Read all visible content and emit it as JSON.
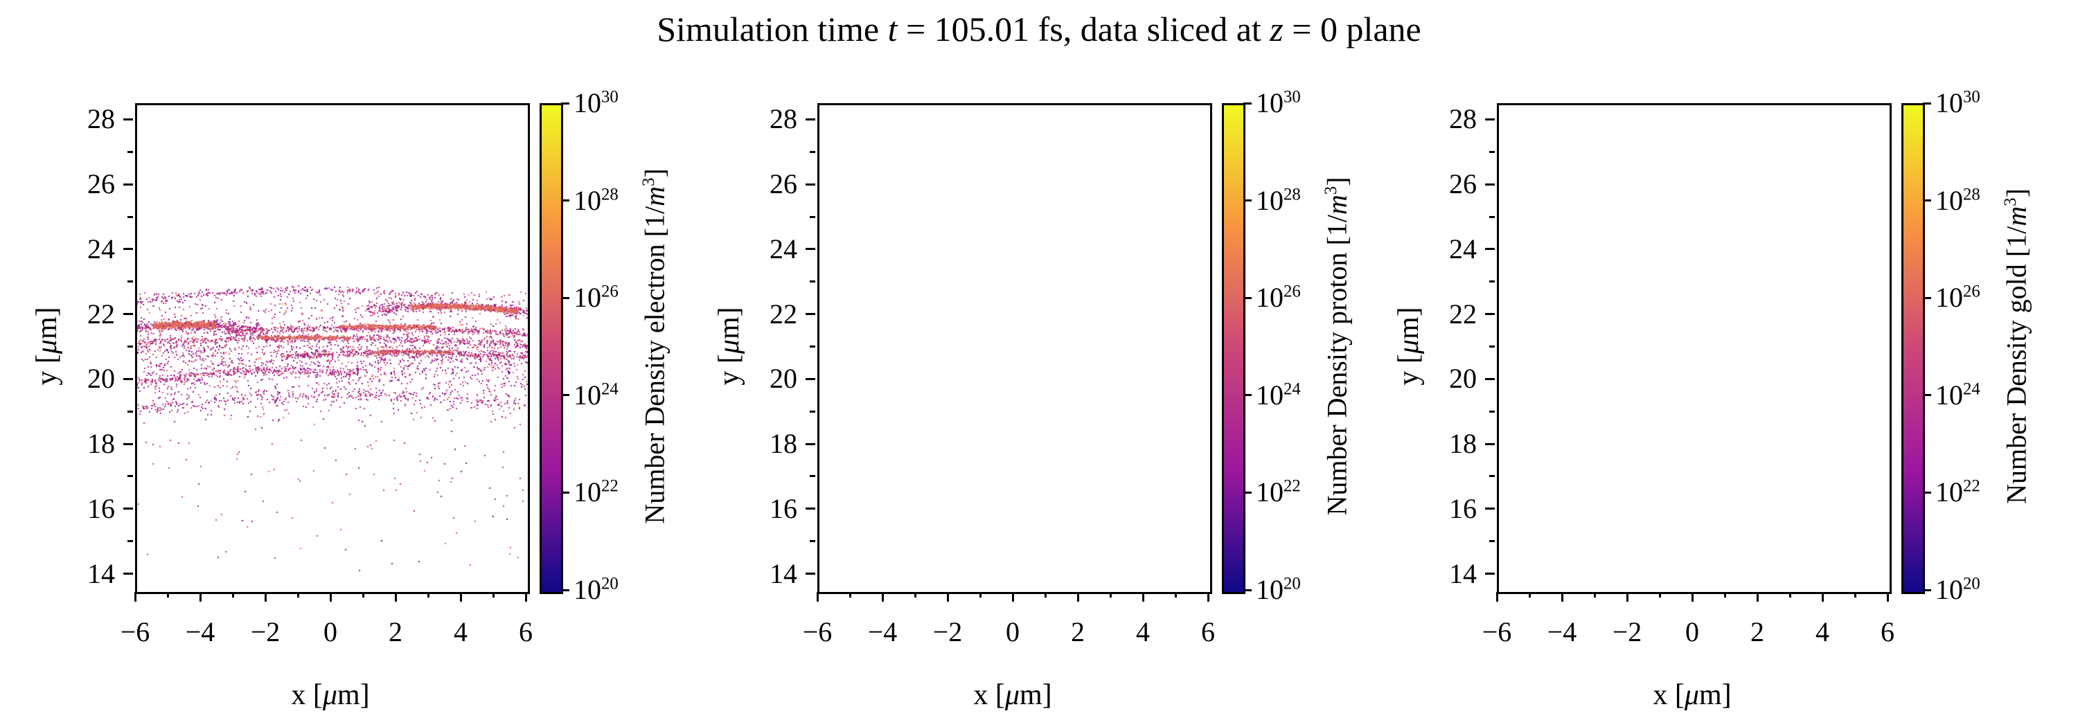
{
  "background": "#ffffff",
  "text_color": "#000000",
  "title": {
    "part1": "Simulation time ",
    "t_var": "t",
    "part2": " = 105.01 fs, data sliced at ",
    "z_var": "z",
    "part3": " = 0 plane"
  },
  "axis_labels": {
    "x_prefix": "x [",
    "mu": "μ",
    "x_suffix": "m]",
    "y_prefix": "y [",
    "y_suffix": "m]"
  },
  "ticks": {
    "x_labels": [
      "−6",
      "−4",
      "−2",
      "0",
      "2",
      "4",
      "6"
    ],
    "y_labels": [
      "28",
      "26",
      "24",
      "22",
      "20",
      "18",
      "16",
      "14"
    ],
    "cbar_base": "10",
    "cbar_exponents": [
      "30",
      "28",
      "26",
      "24",
      "22",
      "20"
    ]
  },
  "panels": [
    {
      "species": "electron",
      "cbar_prefix": "Number Density electron [1/",
      "cbar_m": "m",
      "cbar_exp": "3",
      "cbar_suffix": "]"
    },
    {
      "species": "proton",
      "cbar_prefix": "Number Density proton [1/",
      "cbar_m": "m",
      "cbar_exp": "3",
      "cbar_suffix": "]"
    },
    {
      "species": "gold",
      "cbar_prefix": "Number Density gold [1/",
      "cbar_m": "m",
      "cbar_exp": "3",
      "cbar_suffix": "]"
    }
  ],
  "chart_data": {
    "type": "scatter",
    "title": "Simulation time t = 105.01 fs, data sliced at z = 0 plane",
    "xlabel": "x [μm]",
    "ylabel": "y [μm]",
    "xlim": [
      -6,
      6
    ],
    "ylim": [
      13.5,
      28.5
    ],
    "x_major_ticks": [
      -6,
      -4,
      -2,
      0,
      2,
      4,
      6
    ],
    "x_minor_ticks": [
      -5,
      -3,
      -1,
      1,
      3,
      5
    ],
    "y_major_ticks": [
      28,
      26,
      24,
      22,
      20,
      18,
      16,
      14
    ],
    "y_minor_ticks": [
      15,
      17,
      19,
      21,
      23,
      25,
      27
    ],
    "grid": false,
    "legend": false,
    "color_scale": {
      "type": "log",
      "min": 1e+20,
      "max": 1e+30,
      "unit": "1/m^3",
      "tick_exponents": [
        30,
        28,
        26,
        24,
        22,
        20
      ]
    },
    "colormap": {
      "name": "plasma",
      "stops": [
        [
          0,
          "#0d0887"
        ],
        [
          0.25,
          "#9c179e"
        ],
        [
          0.5,
          "#cc4778"
        ],
        [
          0.75,
          "#f89441"
        ],
        [
          1,
          "#f0f921"
        ]
      ]
    },
    "panels": [
      {
        "species": "electron",
        "empty": false,
        "seed": 11,
        "marker_px": 2,
        "bands": [
          {
            "x0": -6,
            "x1": 3.2,
            "y_peak": 22.82,
            "x_peak": -0.8,
            "curvature": 0.015,
            "spread": 0.06,
            "count": 260,
            "c0": 0.18,
            "c1": 0.52
          },
          {
            "x0": 1.0,
            "x1": 6,
            "y_peak": 22.32,
            "x_peak": 3.3,
            "curvature": 0.03,
            "spread": 0.08,
            "count": 420,
            "c0": 0.22,
            "c1": 0.6
          },
          {
            "x0": 2.4,
            "x1": 5.7,
            "y_peak": 22.3,
            "x_peak": 3.3,
            "curvature": 0.028,
            "spread": 0.035,
            "count": 750,
            "c0": 0.55,
            "c1": 0.68
          },
          {
            "x0": -6,
            "x1": -2.0,
            "y_peak": 21.72,
            "x_peak": -4.4,
            "curvature": 0.04,
            "spread": 0.09,
            "count": 430,
            "c0": 0.22,
            "c1": 0.6
          },
          {
            "x0": -5.5,
            "x1": -3.6,
            "y_peak": 21.74,
            "x_peak": -4.5,
            "curvature": 0.035,
            "spread": 0.042,
            "count": 750,
            "c0": 0.55,
            "c1": 0.68
          },
          {
            "x0": -3.3,
            "x1": 6,
            "y_peak": 21.62,
            "x_peak": 0.8,
            "curvature": 0.006,
            "spread": 0.05,
            "count": 520,
            "c0": 0.28,
            "c1": 0.6
          },
          {
            "x0": 0.2,
            "x1": 3.2,
            "y_peak": 21.68,
            "x_peak": 1.5,
            "curvature": 0.004,
            "spread": 0.028,
            "count": 340,
            "c0": 0.55,
            "c1": 0.66
          },
          {
            "x0": -6,
            "x1": 6,
            "y_peak": 21.3,
            "x_peak": -0.8,
            "curvature": 0.004,
            "spread": 0.06,
            "count": 560,
            "c0": 0.28,
            "c1": 0.58
          },
          {
            "x0": -2.3,
            "x1": 0.5,
            "y_peak": 21.34,
            "x_peak": -1.0,
            "curvature": 0.004,
            "spread": 0.028,
            "count": 300,
            "c0": 0.55,
            "c1": 0.66
          },
          {
            "x0": -1.6,
            "x1": 6,
            "y_peak": 20.86,
            "x_peak": 2.0,
            "curvature": 0.008,
            "spread": 0.05,
            "count": 400,
            "c0": 0.28,
            "c1": 0.6
          },
          {
            "x0": 1.2,
            "x1": 3.7,
            "y_peak": 20.9,
            "x_peak": 2.2,
            "curvature": 0.006,
            "spread": 0.026,
            "count": 230,
            "c0": 0.55,
            "c1": 0.65
          },
          {
            "x0": -6,
            "x1": 0.8,
            "y_peak": 20.32,
            "x_peak": -1.5,
            "curvature": 0.02,
            "spread": 0.07,
            "count": 330,
            "c0": 0.25,
            "c1": 0.55
          },
          {
            "x0": -6,
            "x1": 6,
            "y_peak": 19.55,
            "x_peak": 0.5,
            "curvature": 0.01,
            "spread": 0.1,
            "count": 270,
            "c0": 0.2,
            "c1": 0.5
          }
        ],
        "clouds": [
          {
            "x0": -6,
            "x1": 6,
            "y_top": 22.75,
            "y_bottom": 21.0,
            "count": 650,
            "bias": 1.0,
            "c0": 0.15,
            "c1": 0.6
          },
          {
            "x0": -6,
            "x1": 6,
            "y_top": 21.1,
            "y_bottom": 18.2,
            "count": 1350,
            "bias": 0.38,
            "c0": 0.15,
            "c1": 0.58
          },
          {
            "x0": -6,
            "x1": 6,
            "y_top": 18.2,
            "y_bottom": 13.55,
            "count": 100,
            "bias": 0.5,
            "c0": 0.15,
            "c1": 0.6
          }
        ]
      },
      {
        "species": "proton",
        "empty": true
      },
      {
        "species": "gold",
        "empty": true
      }
    ]
  }
}
